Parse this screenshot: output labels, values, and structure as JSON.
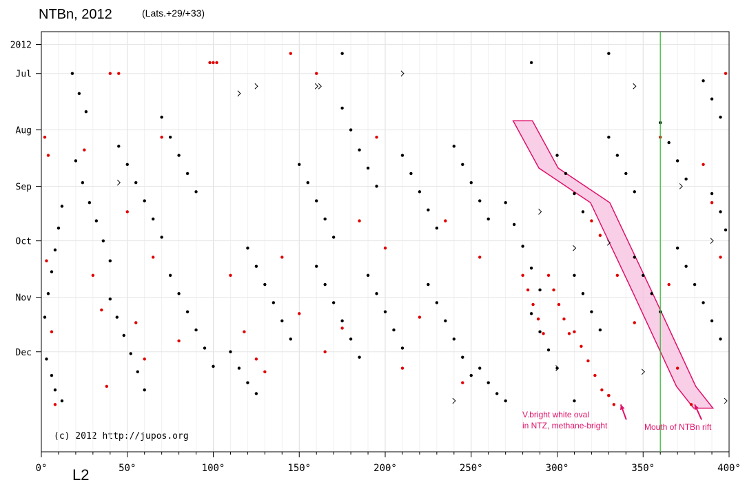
{
  "chart_data": {
    "type": "scatter",
    "title": "NTBn, 2012",
    "subtitle": "(Lats.+29/+33)",
    "xlabel": "L2",
    "ylabel": "",
    "xlim": [
      0,
      400
    ],
    "x_ticks": [
      {
        "value": 0,
        "label": "0°"
      },
      {
        "value": 50,
        "label": "50°"
      },
      {
        "value": 100,
        "label": "100°"
      },
      {
        "value": 150,
        "label": "150°"
      },
      {
        "value": 200,
        "label": "200°"
      },
      {
        "value": 250,
        "label": "250°"
      },
      {
        "value": 300,
        "label": "300°"
      },
      {
        "value": 350,
        "label": "350°"
      },
      {
        "value": 400,
        "label": "400°"
      }
    ],
    "y_axis_reversed": true,
    "ylim": [
      "2012-06-08",
      "2013-01-25"
    ],
    "y_ticks": [
      {
        "value": "2012-06-15",
        "label": "2012"
      },
      {
        "value": "2012-07-01",
        "label": "Jul"
      },
      {
        "value": "2012-08-01",
        "label": "Aug"
      },
      {
        "value": "2012-09-01",
        "label": "Sep"
      },
      {
        "value": "2012-10-01",
        "label": "Oct"
      },
      {
        "value": "2012-11-01",
        "label": "Nov"
      },
      {
        "value": "2012-12-01",
        "label": "Dec"
      }
    ],
    "grid": true,
    "reference_line": {
      "x": 360,
      "color": "#2db82d"
    },
    "copyright": "(c) 2012 http://jupos.org",
    "colors": {
      "black_points": "#000000",
      "red_points": "#e00000",
      "annotation": "#e0106a",
      "band_fill": "#f7bfe0"
    },
    "highlight_band": {
      "points": [
        {
          "x": 280,
          "y": "2012-07-27"
        },
        {
          "x": 295,
          "y": "2012-08-22"
        },
        {
          "x": 325,
          "y": "2012-09-10"
        },
        {
          "x": 350,
          "y": "2012-10-30"
        },
        {
          "x": 375,
          "y": "2012-12-20"
        },
        {
          "x": 385,
          "y": "2013-01-01"
        }
      ]
    },
    "annotations": [
      {
        "text_lines": [
          "V.bright white oval",
          "in NTZ, methane-bright"
        ],
        "arrow_to": {
          "x": 337,
          "y": "2012-12-30"
        }
      },
      {
        "text_lines": [
          "Mouth of NTBn rift"
        ],
        "arrow_to": {
          "x": 380,
          "y": "2012-12-30"
        }
      }
    ],
    "series": [
      {
        "color": "black",
        "marker": "dot",
        "points": [
          [
            2,
            "2012-11-12"
          ],
          [
            4,
            "2012-10-30"
          ],
          [
            6,
            "2012-10-18"
          ],
          [
            8,
            "2012-10-06"
          ],
          [
            10,
            "2012-09-24"
          ],
          [
            12,
            "2012-09-12"
          ],
          [
            3,
            "2012-12-05"
          ],
          [
            6,
            "2012-12-14"
          ],
          [
            8,
            "2012-12-22"
          ],
          [
            12,
            "2012-12-28"
          ],
          [
            20,
            "2012-08-18"
          ],
          [
            24,
            "2012-08-30"
          ],
          [
            28,
            "2012-09-10"
          ],
          [
            32,
            "2012-09-20"
          ],
          [
            36,
            "2012-10-01"
          ],
          [
            40,
            "2012-10-12"
          ],
          [
            18,
            "2012-07-01"
          ],
          [
            22,
            "2012-07-12"
          ],
          [
            26,
            "2012-07-22"
          ],
          [
            40,
            "2012-11-02"
          ],
          [
            44,
            "2012-11-12"
          ],
          [
            48,
            "2012-11-22"
          ],
          [
            52,
            "2012-12-02"
          ],
          [
            56,
            "2012-12-12"
          ],
          [
            60,
            "2012-12-22"
          ],
          [
            45,
            "2012-08-10"
          ],
          [
            50,
            "2012-08-20"
          ],
          [
            55,
            "2012-08-30"
          ],
          [
            60,
            "2012-09-09"
          ],
          [
            65,
            "2012-09-19"
          ],
          [
            70,
            "2012-09-29"
          ],
          [
            70,
            "2012-07-25"
          ],
          [
            75,
            "2012-08-05"
          ],
          [
            80,
            "2012-08-15"
          ],
          [
            85,
            "2012-08-25"
          ],
          [
            90,
            "2012-09-04"
          ],
          [
            75,
            "2012-10-20"
          ],
          [
            80,
            "2012-10-30"
          ],
          [
            85,
            "2012-11-09"
          ],
          [
            90,
            "2012-11-19"
          ],
          [
            95,
            "2012-11-29"
          ],
          [
            100,
            "2012-12-09"
          ],
          [
            120,
            "2012-10-05"
          ],
          [
            125,
            "2012-10-15"
          ],
          [
            130,
            "2012-10-25"
          ],
          [
            135,
            "2012-11-04"
          ],
          [
            140,
            "2012-11-14"
          ],
          [
            145,
            "2012-11-24"
          ],
          [
            150,
            "2012-08-20"
          ],
          [
            155,
            "2012-08-30"
          ],
          [
            160,
            "2012-09-09"
          ],
          [
            165,
            "2012-09-19"
          ],
          [
            170,
            "2012-09-29"
          ],
          [
            110,
            "2012-12-01"
          ],
          [
            115,
            "2012-12-10"
          ],
          [
            120,
            "2012-12-18"
          ],
          [
            125,
            "2012-12-24"
          ],
          [
            160,
            "2012-10-15"
          ],
          [
            165,
            "2012-10-25"
          ],
          [
            170,
            "2012-11-04"
          ],
          [
            175,
            "2012-11-14"
          ],
          [
            180,
            "2012-11-24"
          ],
          [
            185,
            "2012-12-04"
          ],
          [
            175,
            "2012-07-20"
          ],
          [
            180,
            "2012-08-01"
          ],
          [
            185,
            "2012-08-12"
          ],
          [
            190,
            "2012-08-22"
          ],
          [
            195,
            "2012-09-01"
          ],
          [
            190,
            "2012-10-20"
          ],
          [
            195,
            "2012-10-30"
          ],
          [
            200,
            "2012-11-09"
          ],
          [
            205,
            "2012-11-19"
          ],
          [
            210,
            "2012-11-29"
          ],
          [
            210,
            "2012-08-15"
          ],
          [
            215,
            "2012-08-25"
          ],
          [
            220,
            "2012-09-04"
          ],
          [
            225,
            "2012-09-14"
          ],
          [
            230,
            "2012-09-24"
          ],
          [
            225,
            "2012-10-25"
          ],
          [
            230,
            "2012-11-04"
          ],
          [
            235,
            "2012-11-14"
          ],
          [
            240,
            "2012-11-24"
          ],
          [
            245,
            "2012-12-04"
          ],
          [
            250,
            "2012-12-14"
          ],
          [
            240,
            "2012-08-10"
          ],
          [
            245,
            "2012-08-20"
          ],
          [
            250,
            "2012-08-30"
          ],
          [
            255,
            "2012-09-09"
          ],
          [
            260,
            "2012-09-19"
          ],
          [
            255,
            "2012-12-10"
          ],
          [
            260,
            "2012-12-18"
          ],
          [
            265,
            "2012-12-24"
          ],
          [
            270,
            "2012-12-28"
          ],
          [
            270,
            "2012-09-10"
          ],
          [
            275,
            "2012-09-22"
          ],
          [
            280,
            "2012-10-04"
          ],
          [
            285,
            "2012-10-16"
          ],
          [
            290,
            "2012-10-28"
          ],
          [
            285,
            "2012-11-10"
          ],
          [
            290,
            "2012-11-20"
          ],
          [
            295,
            "2012-11-30"
          ],
          [
            300,
            "2012-12-10"
          ],
          [
            300,
            "2012-08-15"
          ],
          [
            305,
            "2012-08-25"
          ],
          [
            310,
            "2012-09-05"
          ],
          [
            315,
            "2012-09-15"
          ],
          [
            310,
            "2012-10-20"
          ],
          [
            315,
            "2012-10-30"
          ],
          [
            320,
            "2012-11-09"
          ],
          [
            325,
            "2012-11-19"
          ],
          [
            330,
            "2012-08-05"
          ],
          [
            335,
            "2012-08-15"
          ],
          [
            340,
            "2012-08-25"
          ],
          [
            345,
            "2012-09-04"
          ],
          [
            345,
            "2012-10-10"
          ],
          [
            350,
            "2012-10-20"
          ],
          [
            355,
            "2012-10-30"
          ],
          [
            360,
            "2012-11-09"
          ],
          [
            360,
            "2012-07-28"
          ],
          [
            365,
            "2012-08-08"
          ],
          [
            370,
            "2012-08-18"
          ],
          [
            375,
            "2012-08-28"
          ],
          [
            370,
            "2012-10-05"
          ],
          [
            375,
            "2012-10-15"
          ],
          [
            380,
            "2012-10-25"
          ],
          [
            385,
            "2012-11-04"
          ],
          [
            390,
            "2012-11-14"
          ],
          [
            395,
            "2012-11-24"
          ],
          [
            385,
            "2012-07-05"
          ],
          [
            390,
            "2012-07-15"
          ],
          [
            395,
            "2012-07-25"
          ],
          [
            390,
            "2012-09-05"
          ],
          [
            395,
            "2012-09-15"
          ],
          [
            398,
            "2012-09-25"
          ],
          [
            175,
            "2012-06-20"
          ],
          [
            285,
            "2012-06-25"
          ],
          [
            330,
            "2012-06-20"
          ],
          [
            310,
            "2012-12-28"
          ],
          [
            330,
            "2012-12-25"
          ]
        ]
      },
      {
        "color": "red",
        "marker": "dot",
        "points": [
          [
            2,
            "2012-08-05"
          ],
          [
            4,
            "2012-08-15"
          ],
          [
            3,
            "2012-10-12"
          ],
          [
            6,
            "2012-11-20"
          ],
          [
            8,
            "2012-12-30"
          ],
          [
            25,
            "2012-08-12"
          ],
          [
            30,
            "2012-10-20"
          ],
          [
            35,
            "2012-11-08"
          ],
          [
            38,
            "2012-12-20"
          ],
          [
            40,
            "2012-07-01"
          ],
          [
            45,
            "2012-07-01"
          ],
          [
            50,
            "2012-09-15"
          ],
          [
            55,
            "2012-11-15"
          ],
          [
            60,
            "2012-12-05"
          ],
          [
            65,
            "2012-10-10"
          ],
          [
            70,
            "2012-08-05"
          ],
          [
            80,
            "2012-11-25"
          ],
          [
            98,
            "2012-06-25"
          ],
          [
            100,
            "2012-06-25"
          ],
          [
            102,
            "2012-06-25"
          ],
          [
            110,
            "2012-10-20"
          ],
          [
            118,
            "2012-11-20"
          ],
          [
            125,
            "2012-12-05"
          ],
          [
            130,
            "2012-12-12"
          ],
          [
            140,
            "2012-10-10"
          ],
          [
            145,
            "2012-06-20"
          ],
          [
            150,
            "2012-11-10"
          ],
          [
            160,
            "2012-07-01"
          ],
          [
            165,
            "2012-12-01"
          ],
          [
            175,
            "2012-11-18"
          ],
          [
            185,
            "2012-09-20"
          ],
          [
            195,
            "2012-08-05"
          ],
          [
            200,
            "2012-10-05"
          ],
          [
            210,
            "2012-12-10"
          ],
          [
            220,
            "2012-11-12"
          ],
          [
            235,
            "2012-09-20"
          ],
          [
            245,
            "2012-12-18"
          ],
          [
            255,
            "2012-10-10"
          ],
          [
            280,
            "2012-10-20"
          ],
          [
            283,
            "2012-10-28"
          ],
          [
            286,
            "2012-11-05"
          ],
          [
            289,
            "2012-11-13"
          ],
          [
            292,
            "2012-11-21"
          ],
          [
            295,
            "2012-10-20"
          ],
          [
            298,
            "2012-10-28"
          ],
          [
            301,
            "2012-11-05"
          ],
          [
            304,
            "2012-11-13"
          ],
          [
            307,
            "2012-11-21"
          ],
          [
            310,
            "2012-11-20"
          ],
          [
            314,
            "2012-11-28"
          ],
          [
            318,
            "2012-12-06"
          ],
          [
            322,
            "2012-12-14"
          ],
          [
            326,
            "2012-12-22"
          ],
          [
            330,
            "2012-12-25"
          ],
          [
            333,
            "2012-12-30"
          ],
          [
            320,
            "2012-09-20"
          ],
          [
            325,
            "2012-09-28"
          ],
          [
            335,
            "2012-10-20"
          ],
          [
            345,
            "2012-11-15"
          ],
          [
            360,
            "2012-08-05"
          ],
          [
            365,
            "2012-10-25"
          ],
          [
            370,
            "2012-12-10"
          ],
          [
            378,
            "2012-12-30"
          ],
          [
            385,
            "2012-08-20"
          ],
          [
            390,
            "2012-09-10"
          ],
          [
            395,
            "2012-10-10"
          ],
          [
            398,
            "2012-07-01"
          ]
        ]
      },
      {
        "color": "black",
        "marker": "chevron",
        "points": [
          [
            45,
            "2012-08-30"
          ],
          [
            115,
            "2012-07-12"
          ],
          [
            125,
            "2012-07-08"
          ],
          [
            160,
            "2012-07-08"
          ],
          [
            162,
            "2012-07-08"
          ],
          [
            210,
            "2012-07-01"
          ],
          [
            240,
            "2012-12-28"
          ],
          [
            290,
            "2012-09-15"
          ],
          [
            300,
            "2012-12-10"
          ],
          [
            310,
            "2012-10-05"
          ],
          [
            330,
            "2012-10-02"
          ],
          [
            345,
            "2012-07-08"
          ],
          [
            350,
            "2012-12-12"
          ],
          [
            372,
            "2012-09-01"
          ],
          [
            390,
            "2012-10-01"
          ],
          [
            398,
            "2012-12-28"
          ]
        ]
      }
    ]
  }
}
